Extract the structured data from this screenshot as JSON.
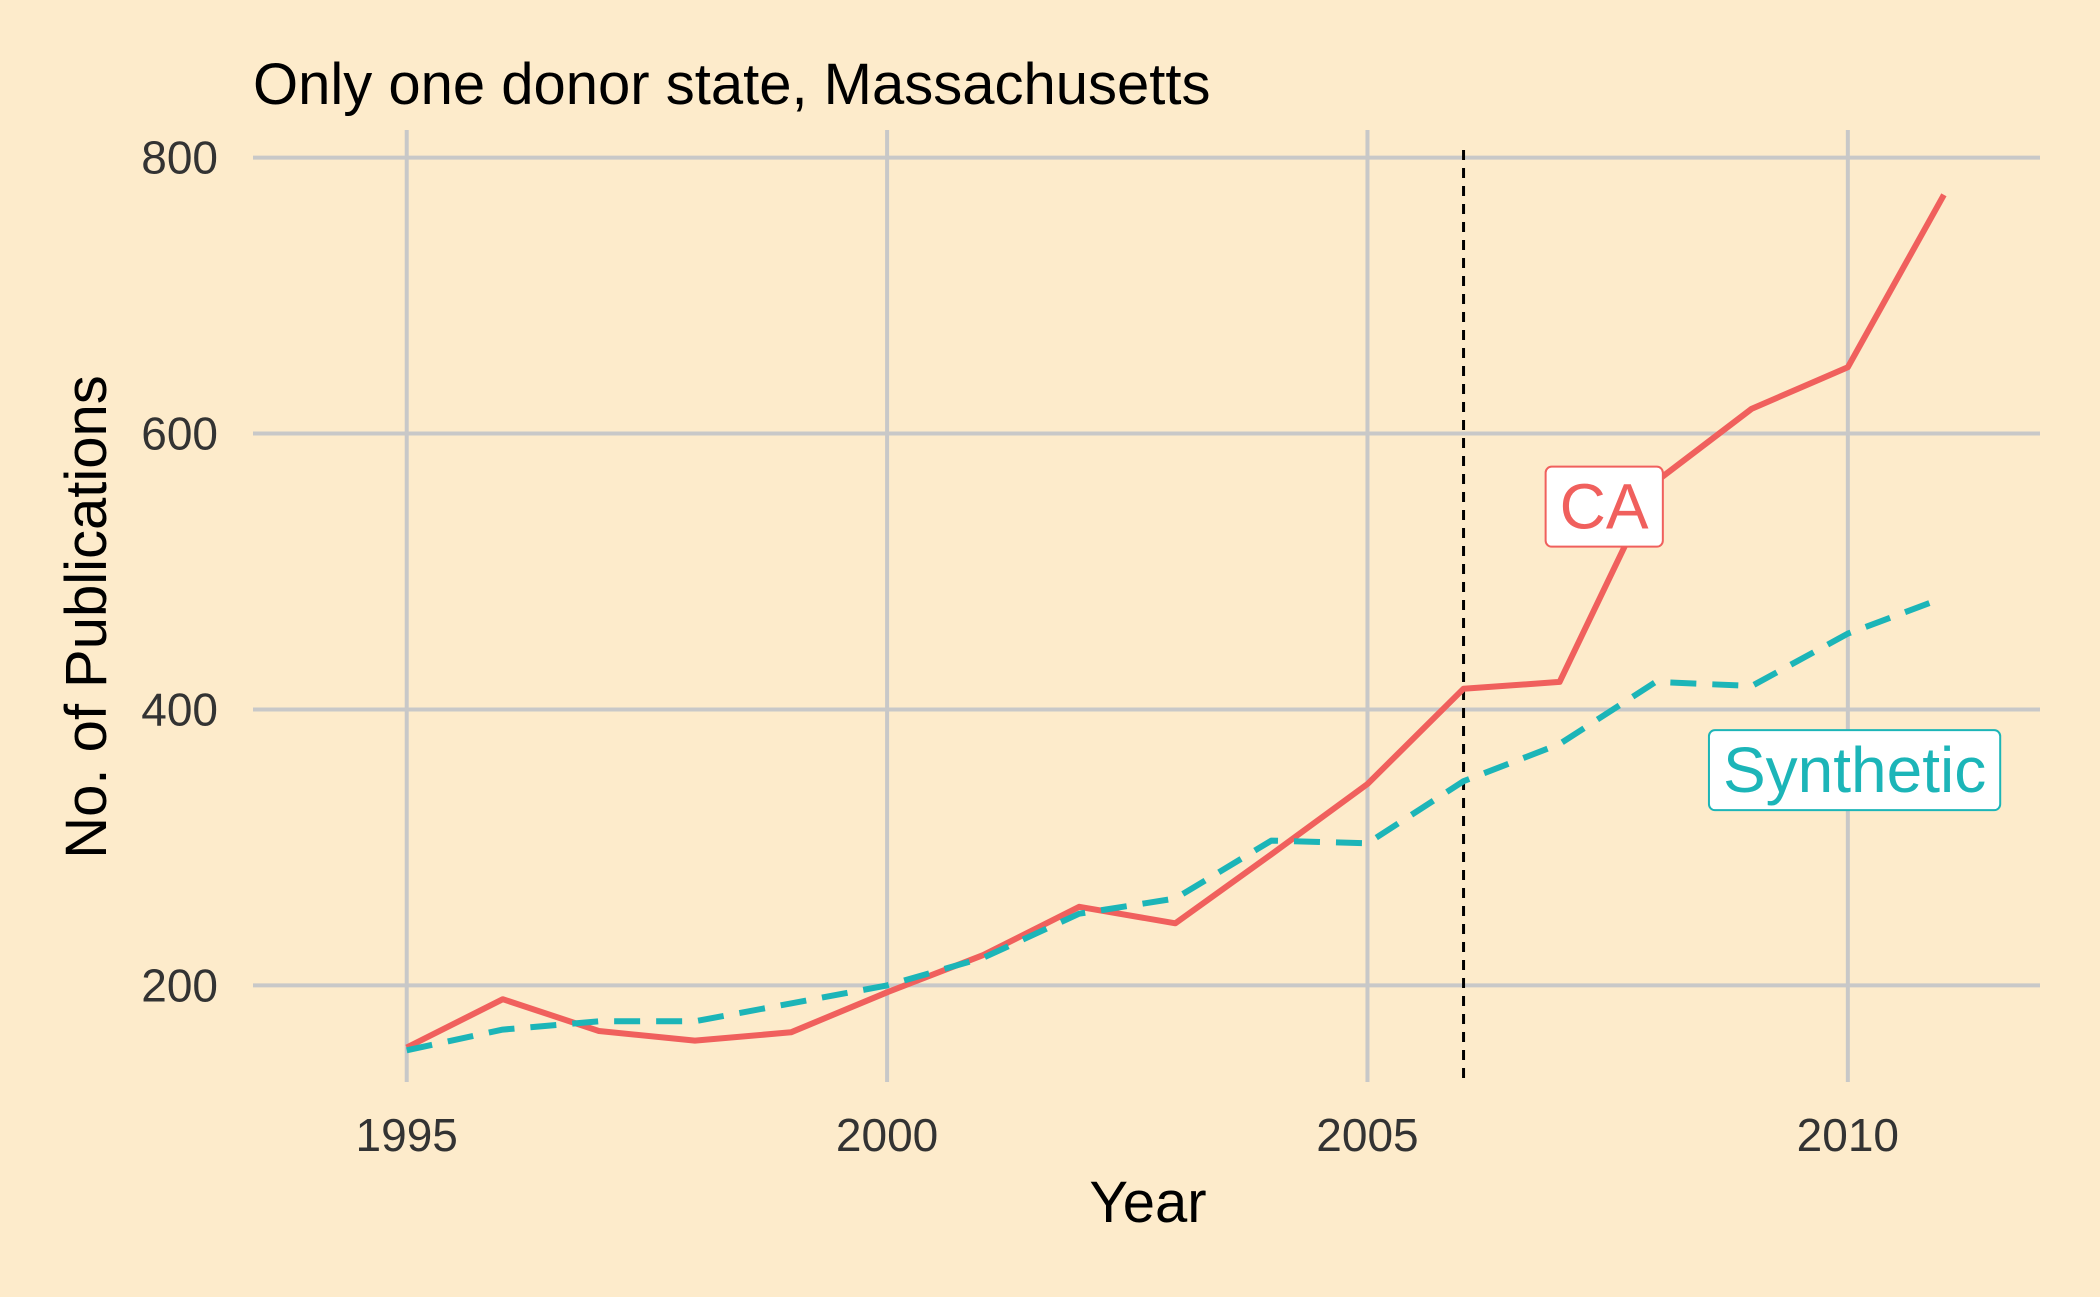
{
  "chart_data": {
    "type": "line",
    "title": "Only one donor state, Massachusetts",
    "xlabel": "Year",
    "ylabel": "No. of Publications",
    "xlim": [
      1993.4,
      2012.0
    ],
    "ylim": [
      130,
      820
    ],
    "xticks": [
      1995,
      2000,
      2005,
      2010
    ],
    "yticks": [
      200,
      400,
      600,
      800
    ],
    "grid": true,
    "treatment_year": 2006,
    "x": [
      1995,
      1996,
      1997,
      1998,
      1999,
      2000,
      2001,
      2002,
      2003,
      2004,
      2005,
      2006,
      2007,
      2008,
      2009,
      2010,
      2011
    ],
    "series": [
      {
        "name": "CA",
        "color": "#F0605D",
        "style": "solid",
        "values": [
          155,
          190,
          167,
          160,
          166,
          195,
          222,
          257,
          245,
          295,
          346,
          415,
          420,
          565,
          618,
          648,
          773
        ],
        "label_at": [
          2007.0,
          547
        ]
      },
      {
        "name": "Synthetic",
        "color": "#1CB5B8",
        "style": "dashed",
        "values": [
          153,
          168,
          174,
          174,
          187,
          200,
          220,
          252,
          263,
          305,
          303,
          348,
          375,
          420,
          417,
          455,
          481
        ],
        "label_at": [
          2008.7,
          356
        ]
      }
    ]
  }
}
